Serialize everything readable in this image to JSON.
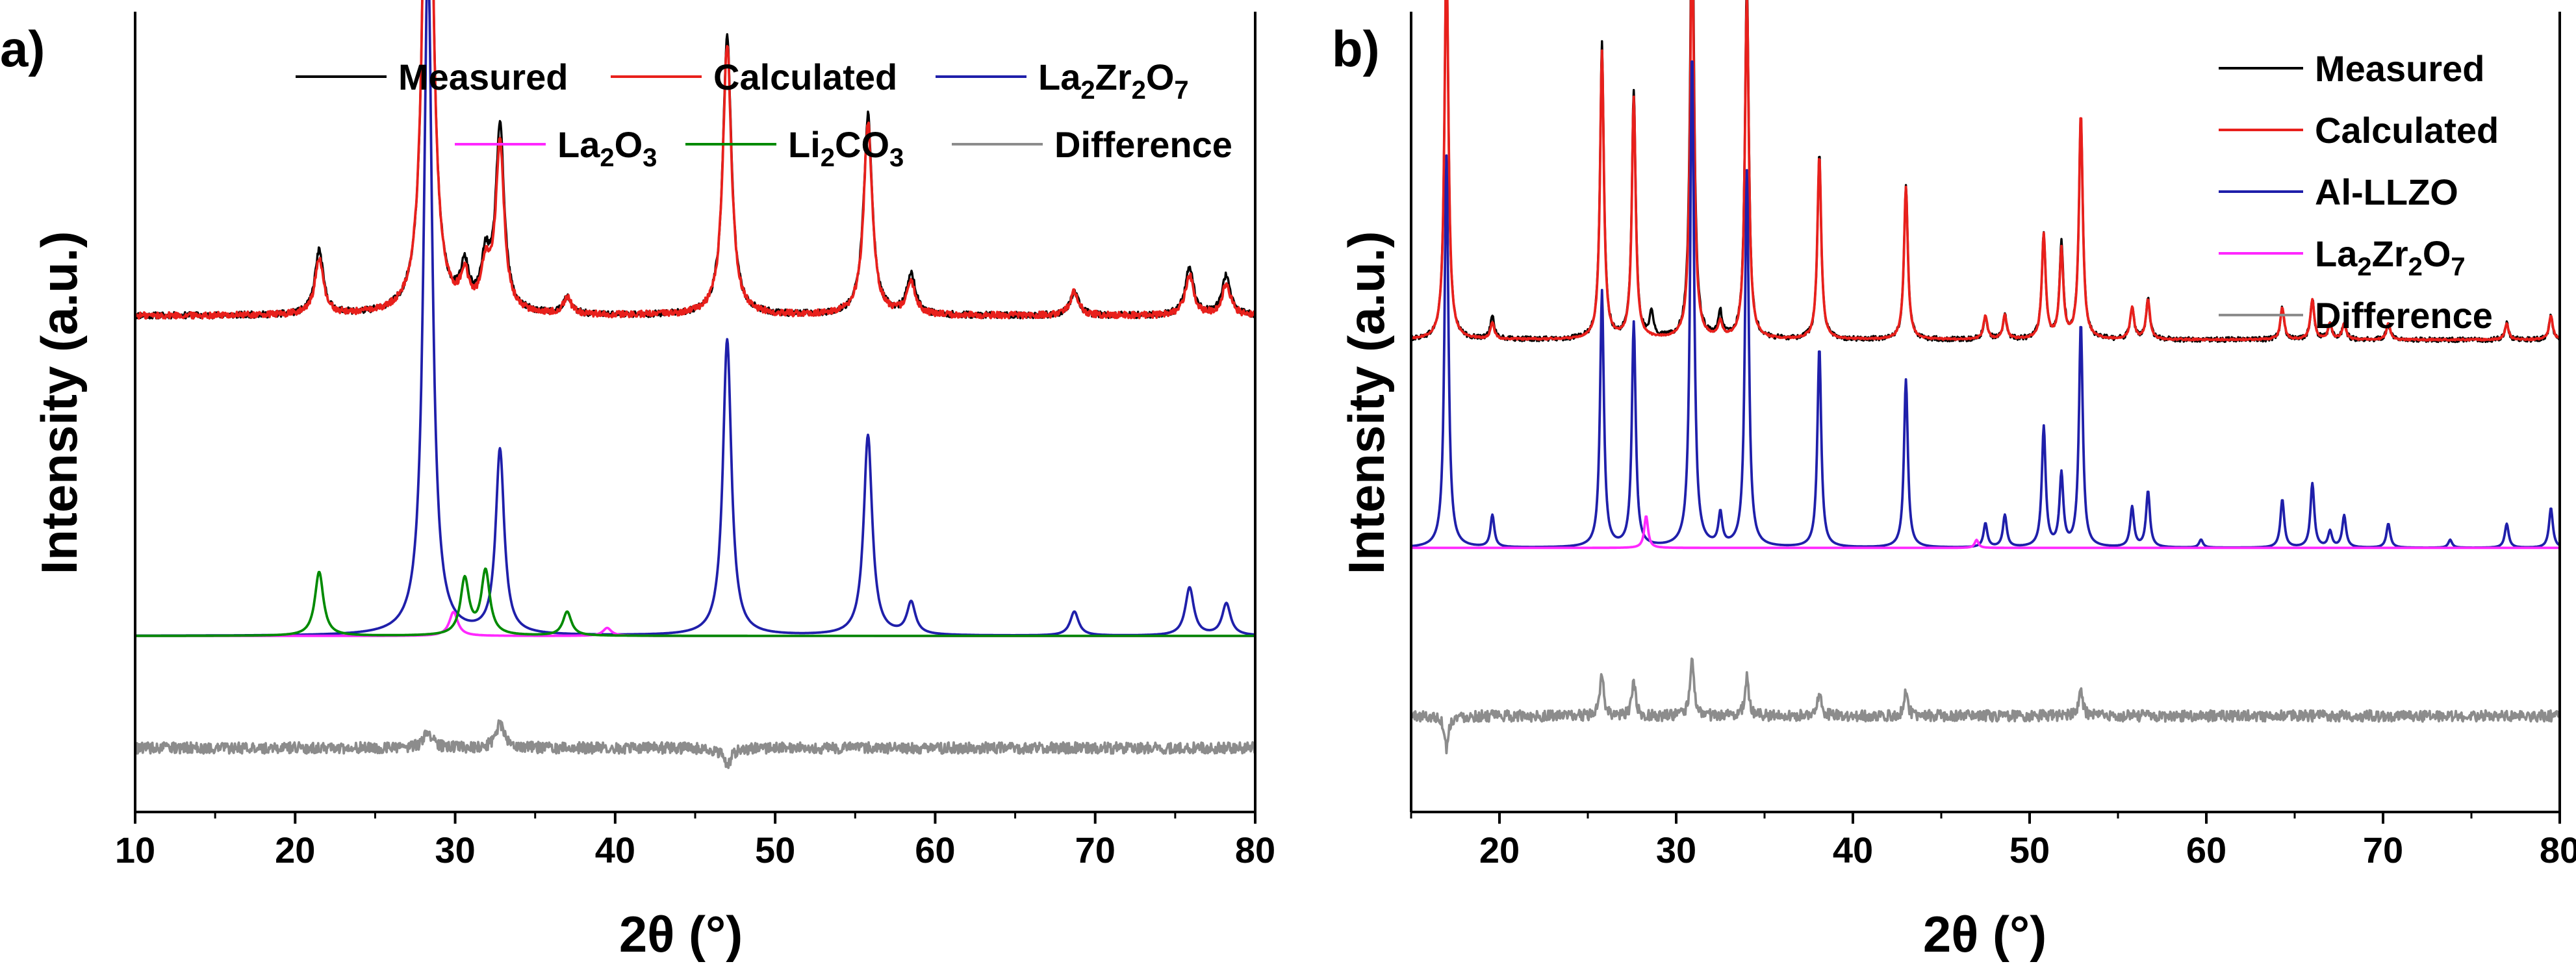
{
  "chart_data": [
    {
      "type": "line",
      "panel_label": "a)",
      "xlabel": "2θ (°)",
      "ylabel": "Intensity (a.u.)",
      "xlim": [
        10,
        80
      ],
      "xticks": [
        10,
        20,
        30,
        40,
        50,
        60,
        70,
        80
      ],
      "legend": [
        {
          "name": "Measured",
          "base": "Measured",
          "subs": [],
          "color": "#000000"
        },
        {
          "name": "Calculated",
          "base": "Calculated",
          "subs": [],
          "color": "#e8201c"
        },
        {
          "name": "La2Zr2O7",
          "base": "La",
          "subs": [
            [
              "2",
              "Zr"
            ],
            [
              "2",
              "O"
            ],
            [
              "7",
              ""
            ]
          ],
          "color": "#1f1faa"
        },
        {
          "name": "La2O3",
          "base": "La",
          "subs": [
            [
              "2",
              "O"
            ],
            [
              "3",
              ""
            ]
          ],
          "color": "#ff28ff"
        },
        {
          "name": "Li2CO3",
          "base": "Li",
          "subs": [
            [
              "2",
              "CO"
            ],
            [
              "3",
              ""
            ]
          ],
          "color": "#008a00"
        },
        {
          "name": "Difference",
          "base": "Difference",
          "subs": [],
          "color": "#8c8c8c"
        }
      ],
      "series": [
        {
          "name": "Measured",
          "offset": 0.62,
          "color": "#000000",
          "peaks": [
            [
              21.5,
              0.08
            ],
            [
              28.3,
              0.87
            ],
            [
              30.6,
              0.05
            ],
            [
              31.9,
              0.06
            ],
            [
              32.8,
              0.23
            ],
            [
              37.0,
              0.02
            ],
            [
              47.0,
              0.35
            ],
            [
              55.8,
              0.25
            ],
            [
              58.5,
              0.05
            ],
            [
              68.7,
              0.03
            ],
            [
              75.9,
              0.06
            ],
            [
              78.2,
              0.05
            ]
          ]
        },
        {
          "name": "Calculated",
          "offset": 0.62,
          "color": "#e8201c",
          "peaks": [
            [
              21.5,
              0.07
            ],
            [
              28.3,
              0.87
            ],
            [
              30.6,
              0.04
            ],
            [
              31.9,
              0.05
            ],
            [
              32.8,
              0.21
            ],
            [
              37.0,
              0.02
            ],
            [
              47.0,
              0.34
            ],
            [
              55.8,
              0.24
            ],
            [
              58.5,
              0.04
            ],
            [
              68.7,
              0.03
            ],
            [
              75.9,
              0.05
            ],
            [
              78.2,
              0.04
            ]
          ]
        },
        {
          "name": "La2Zr2O7",
          "offset": 0.22,
          "color": "#1f1faa",
          "peaks": [
            [
              28.3,
              0.85
            ],
            [
              32.8,
              0.23
            ],
            [
              47.0,
              0.37
            ],
            [
              55.8,
              0.25
            ],
            [
              58.5,
              0.04
            ],
            [
              68.7,
              0.03
            ],
            [
              75.9,
              0.06
            ],
            [
              78.2,
              0.04
            ]
          ]
        },
        {
          "name": "La2O3",
          "offset": 0.22,
          "color": "#ff28ff",
          "peaks": [
            [
              29.9,
              0.03
            ],
            [
              39.5,
              0.01
            ]
          ]
        },
        {
          "name": "Li2CO3",
          "offset": 0.22,
          "color": "#008a00",
          "peaks": [
            [
              21.5,
              0.08
            ],
            [
              30.6,
              0.07
            ],
            [
              31.9,
              0.08
            ],
            [
              37.0,
              0.03
            ]
          ]
        },
        {
          "name": "Difference",
          "offset": 0.08,
          "color": "#8c8c8c",
          "peaks": [
            [
              28.3,
              0.02
            ],
            [
              32.8,
              0.03
            ],
            [
              47.0,
              -0.02
            ]
          ]
        }
      ]
    },
    {
      "type": "line",
      "panel_label": "b)",
      "xlabel": "2θ (°)",
      "ylabel": "Intensity (a.u.)",
      "xlim": [
        15,
        80
      ],
      "xticks": [
        20,
        30,
        40,
        50,
        60,
        70,
        80
      ],
      "legend": [
        {
          "name": "Measured",
          "base": "Measured",
          "subs": [],
          "color": "#000000"
        },
        {
          "name": "Calculated",
          "base": "Calculated",
          "subs": [],
          "color": "#e8201c"
        },
        {
          "name": "Al-LLZO",
          "base": "Al-LLZO",
          "subs": [],
          "color": "#1f1faa"
        },
        {
          "name": "La2Zr2O7",
          "base": "La",
          "subs": [
            [
              "2",
              "Zr"
            ],
            [
              "2",
              "O"
            ],
            [
              "7",
              ""
            ]
          ],
          "color": "#ff28ff"
        },
        {
          "name": "Difference",
          "base": "Difference",
          "subs": [],
          "color": "#8c8c8c"
        }
      ],
      "series": [
        {
          "name": "Measured",
          "offset": 0.59,
          "color": "#000000",
          "peaks": [
            [
              17.0,
              0.49
            ],
            [
              19.6,
              0.03
            ],
            [
              25.8,
              0.37
            ],
            [
              27.6,
              0.31
            ],
            [
              28.6,
              0.03
            ],
            [
              30.9,
              0.59
            ],
            [
              32.5,
              0.03
            ],
            [
              34.0,
              0.45
            ],
            [
              38.1,
              0.23
            ],
            [
              43.0,
              0.19
            ],
            [
              47.5,
              0.03
            ],
            [
              48.6,
              0.03
            ],
            [
              50.8,
              0.13
            ],
            [
              51.8,
              0.12
            ],
            [
              52.9,
              0.28
            ],
            [
              55.8,
              0.04
            ],
            [
              56.7,
              0.05
            ],
            [
              64.3,
              0.04
            ],
            [
              66.0,
              0.05
            ],
            [
              67.0,
              0.02
            ],
            [
              67.8,
              0.02
            ],
            [
              70.3,
              0.02
            ],
            [
              77.0,
              0.02
            ],
            [
              79.5,
              0.03
            ]
          ]
        },
        {
          "name": "Calculated",
          "offset": 0.59,
          "color": "#e8201c",
          "peaks": [
            [
              17.0,
              0.49
            ],
            [
              19.6,
              0.02
            ],
            [
              25.8,
              0.36
            ],
            [
              27.6,
              0.3
            ],
            [
              30.9,
              0.52
            ],
            [
              32.5,
              0.02
            ],
            [
              34.0,
              0.43
            ],
            [
              38.1,
              0.23
            ],
            [
              43.0,
              0.19
            ],
            [
              47.5,
              0.03
            ],
            [
              48.6,
              0.03
            ],
            [
              50.8,
              0.13
            ],
            [
              51.8,
              0.11
            ],
            [
              52.9,
              0.28
            ],
            [
              55.8,
              0.04
            ],
            [
              56.7,
              0.05
            ],
            [
              64.3,
              0.04
            ],
            [
              66.0,
              0.05
            ],
            [
              67.0,
              0.02
            ],
            [
              67.8,
              0.02
            ],
            [
              70.3,
              0.02
            ],
            [
              77.0,
              0.02
            ],
            [
              79.5,
              0.03
            ]
          ]
        },
        {
          "name": "Al-LLZO",
          "offset": 0.33,
          "color": "#1f1faa",
          "peaks": [
            [
              17.0,
              0.49
            ],
            [
              19.6,
              0.04
            ],
            [
              25.8,
              0.32
            ],
            [
              27.6,
              0.28
            ],
            [
              30.9,
              0.62
            ],
            [
              32.5,
              0.04
            ],
            [
              34.0,
              0.47
            ],
            [
              38.1,
              0.25
            ],
            [
              43.0,
              0.21
            ],
            [
              47.5,
              0.03
            ],
            [
              48.6,
              0.04
            ],
            [
              50.8,
              0.15
            ],
            [
              51.8,
              0.09
            ],
            [
              52.9,
              0.28
            ],
            [
              55.8,
              0.05
            ],
            [
              56.7,
              0.07
            ],
            [
              59.7,
              0.01
            ],
            [
              64.3,
              0.06
            ],
            [
              66.0,
              0.08
            ],
            [
              67.0,
              0.02
            ],
            [
              67.8,
              0.04
            ],
            [
              70.3,
              0.03
            ],
            [
              73.8,
              0.01
            ],
            [
              77.0,
              0.03
            ],
            [
              79.5,
              0.05
            ]
          ]
        },
        {
          "name": "La2Zr2O7",
          "offset": 0.33,
          "color": "#ff28ff",
          "peaks": [
            [
              28.3,
              0.04
            ],
            [
              47.0,
              0.01
            ]
          ]
        },
        {
          "name": "Difference",
          "offset": 0.12,
          "color": "#8c8c8c",
          "peaks": [
            [
              17.0,
              -0.04
            ],
            [
              25.8,
              0.05
            ],
            [
              27.6,
              0.04
            ],
            [
              30.9,
              0.07
            ],
            [
              34.0,
              0.05
            ],
            [
              38.1,
              0.03
            ],
            [
              43.0,
              0.03
            ],
            [
              52.9,
              0.03
            ]
          ]
        }
      ]
    }
  ]
}
